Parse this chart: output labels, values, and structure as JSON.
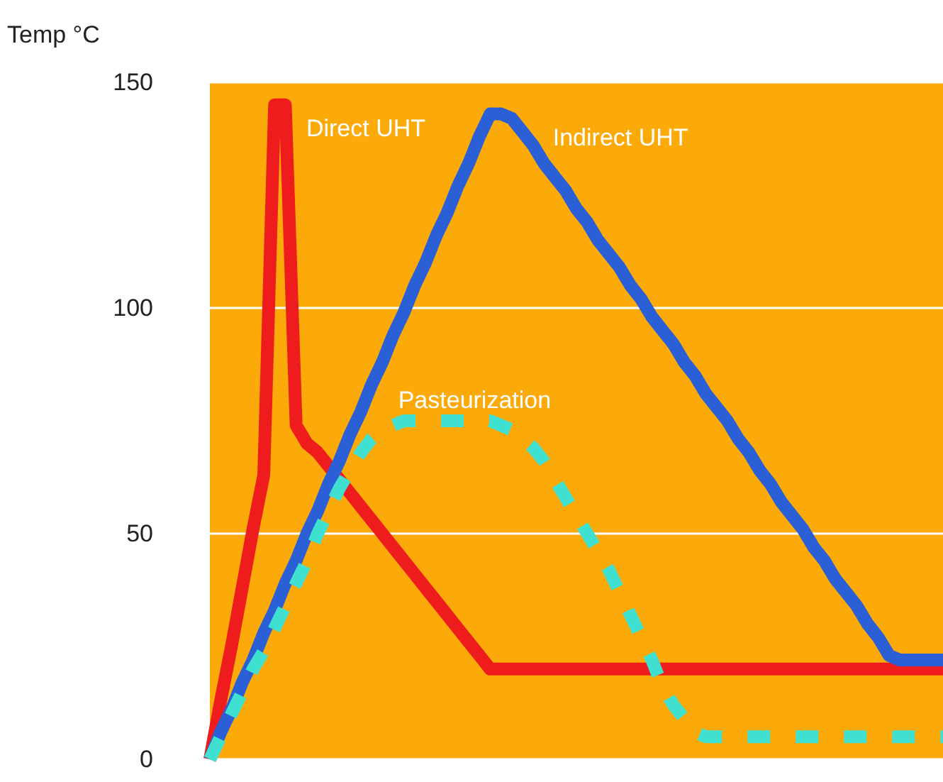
{
  "chart_data": {
    "type": "line",
    "ylabel": "Temp °C",
    "ylim": [
      0,
      150
    ],
    "yticks": [
      0,
      50,
      100,
      150
    ],
    "tick_labels": "y",
    "grid": "y",
    "categories": [
      null,
      null,
      null,
      null,
      null,
      null,
      null,
      null,
      null,
      null,
      null,
      null,
      null,
      null,
      null,
      null,
      null,
      null,
      null,
      null,
      null,
      null,
      null,
      null,
      null,
      null,
      null,
      null,
      null,
      null,
      null,
      null,
      null,
      null,
      null,
      null,
      null,
      null,
      null,
      null,
      null,
      null,
      null,
      null,
      null,
      null,
      null,
      null,
      null,
      null,
      null,
      null,
      null,
      null,
      null,
      null,
      null,
      null,
      null,
      null,
      null,
      null,
      null,
      null,
      null,
      null,
      null,
      null,
      null
    ],
    "series": [
      {
        "name": "Direct UHT",
        "color": "#ee1c1c",
        "line_style": "solid",
        "values": [
          0,
          13,
          25,
          38,
          51,
          63,
          145,
          145,
          74,
          70,
          68,
          65,
          62,
          59,
          56,
          53,
          50,
          47,
          44,
          41,
          38,
          35,
          32,
          29,
          26,
          23,
          20,
          20,
          20,
          20,
          20,
          20,
          20,
          20,
          20,
          20,
          20,
          20,
          20,
          20,
          20,
          20,
          20,
          20,
          20,
          20,
          20,
          20,
          20,
          20,
          20,
          20,
          20,
          20,
          20,
          20,
          20,
          20,
          20,
          20,
          20,
          20,
          20,
          20,
          20,
          20,
          20,
          20,
          20
        ]
      },
      {
        "name": "Indirect UHT",
        "color": "#2a5fd6",
        "line_style": "solid",
        "values": [
          0,
          6,
          11,
          17,
          22,
          28,
          33,
          39,
          44,
          50,
          55,
          61,
          66,
          72,
          77,
          83,
          88,
          94,
          99,
          105,
          110,
          116,
          121,
          127,
          132,
          138,
          143,
          143,
          142,
          139,
          136,
          132,
          129,
          126,
          122,
          119,
          115,
          112,
          109,
          105,
          102,
          98,
          95,
          92,
          88,
          85,
          81,
          78,
          75,
          71,
          68,
          64,
          61,
          57,
          54,
          51,
          47,
          44,
          40,
          37,
          34,
          30,
          27,
          23,
          22,
          22,
          22,
          22,
          22
        ]
      },
      {
        "name": "Pasteurization",
        "color": "#40e0d0",
        "line_style": "dashed",
        "values": [
          0,
          5,
          10,
          15,
          20,
          24,
          29,
          34,
          39,
          44,
          50,
          55,
          60,
          64,
          68,
          71,
          73,
          74,
          75,
          75,
          75,
          75,
          75,
          75,
          75,
          75,
          75,
          74,
          73,
          71,
          69,
          66,
          62,
          58,
          54,
          50,
          46,
          42,
          37,
          32,
          27,
          22,
          16,
          12,
          9,
          6,
          5,
          5,
          5,
          5,
          5,
          5,
          5,
          5,
          5,
          5,
          5,
          5,
          5,
          5,
          5,
          5,
          5,
          5,
          5,
          5,
          5,
          5,
          5
        ]
      }
    ]
  }
}
